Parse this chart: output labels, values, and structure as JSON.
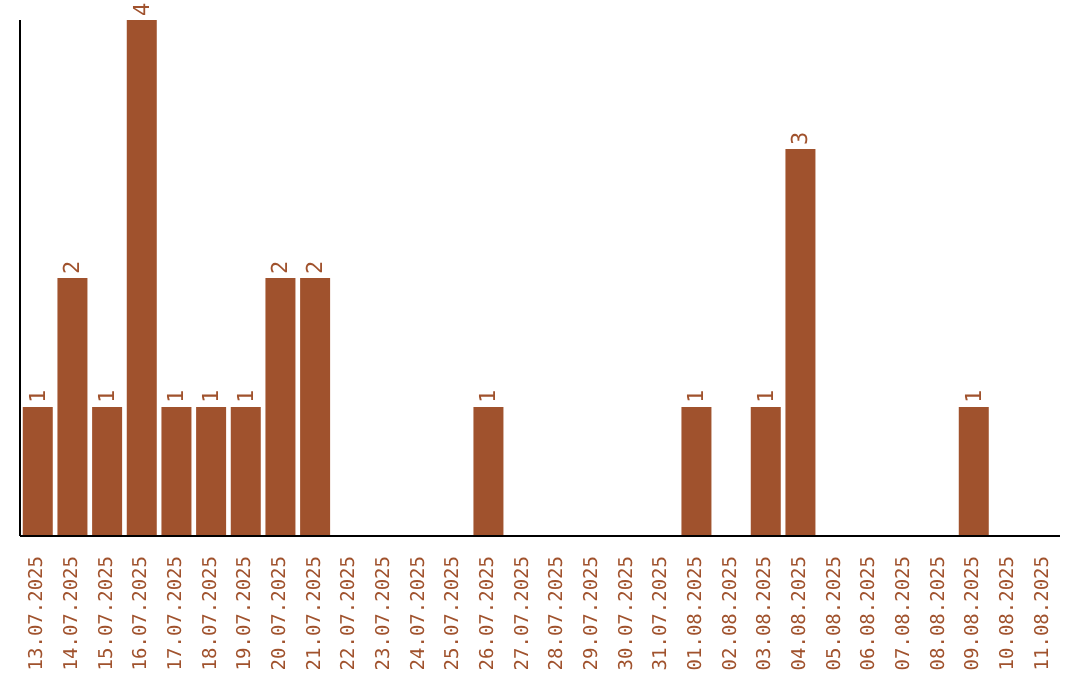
{
  "chart_data": {
    "type": "bar",
    "categories": [
      "13.07.2025",
      "14.07.2025",
      "15.07.2025",
      "16.07.2025",
      "17.07.2025",
      "18.07.2025",
      "19.07.2025",
      "20.07.2025",
      "21.07.2025",
      "22.07.2025",
      "23.07.2025",
      "24.07.2025",
      "25.07.2025",
      "26.07.2025",
      "27.07.2025",
      "28.07.2025",
      "29.07.2025",
      "30.07.2025",
      "31.07.2025",
      "01.08.2025",
      "02.08.2025",
      "03.08.2025",
      "04.08.2025",
      "05.08.2025",
      "06.08.2025",
      "07.08.2025",
      "08.08.2025",
      "09.08.2025",
      "10.08.2025",
      "11.08.2025"
    ],
    "values": [
      1,
      2,
      1,
      4,
      1,
      1,
      1,
      2,
      2,
      0,
      0,
      0,
      0,
      1,
      0,
      0,
      0,
      0,
      0,
      1,
      0,
      1,
      3,
      0,
      0,
      0,
      0,
      1,
      0,
      0
    ],
    "value_labels": [
      "1",
      "2",
      "1",
      "4",
      "1",
      "1",
      "1",
      "2",
      "2",
      null,
      null,
      null,
      null,
      "1",
      null,
      null,
      null,
      null,
      null,
      "1",
      null,
      "1",
      "3",
      null,
      null,
      null,
      null,
      "1",
      null,
      null
    ],
    "color": "#a0522d",
    "tick_labels": "x",
    "grid": false
  }
}
